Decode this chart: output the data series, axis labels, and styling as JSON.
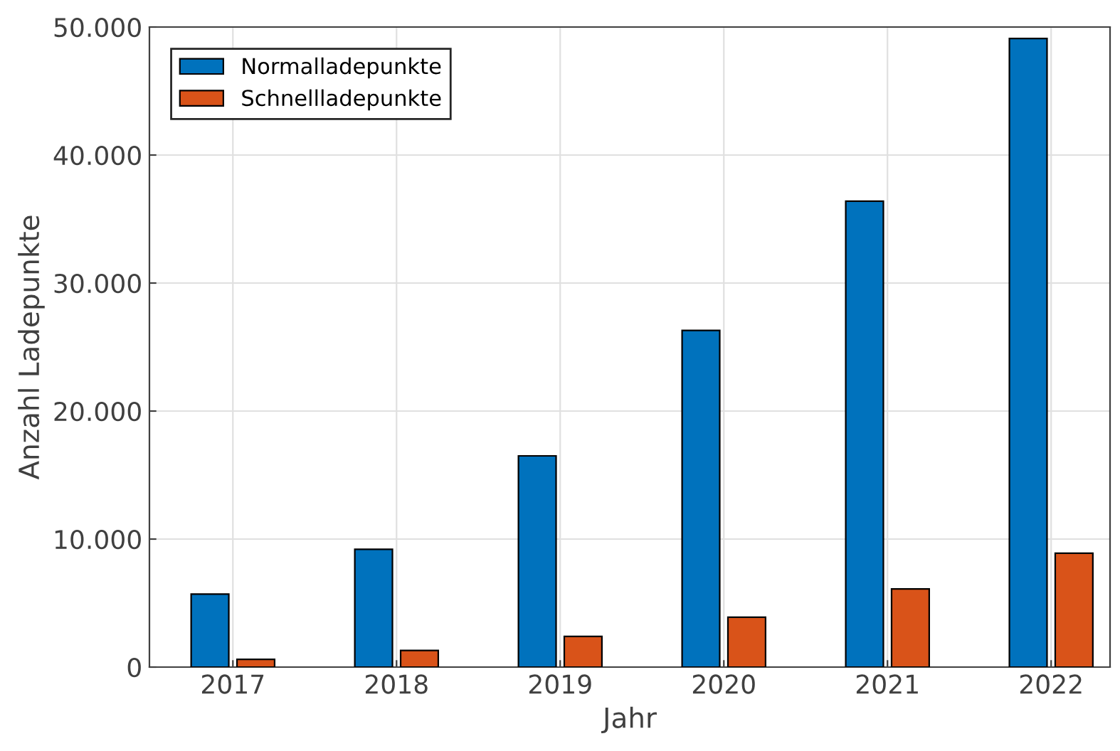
{
  "chart_data": {
    "type": "bar",
    "xlabel": "Jahr",
    "ylabel": "Anzahl Ladepunkte",
    "categories": [
      "2017",
      "2018",
      "2019",
      "2020",
      "2021",
      "2022"
    ],
    "series": [
      {
        "name": "Normalladepunkte",
        "color": "#0072bd",
        "values": [
          5700,
          9200,
          16500,
          26300,
          36400,
          49100
        ]
      },
      {
        "name": "Schnellladepunkte",
        "color": "#d95319",
        "values": [
          600,
          1300,
          2400,
          3900,
          6100,
          8900
        ]
      }
    ],
    "ylim": [
      0,
      50000
    ],
    "yticks": [
      {
        "value": 0,
        "label": "0"
      },
      {
        "value": 10000,
        "label": "10.000"
      },
      {
        "value": 20000,
        "label": "20.000"
      },
      {
        "value": 30000,
        "label": "30.000"
      },
      {
        "value": 40000,
        "label": "40.000"
      },
      {
        "value": 50000,
        "label": "50.000"
      }
    ],
    "grid": true,
    "legend": "top left"
  }
}
